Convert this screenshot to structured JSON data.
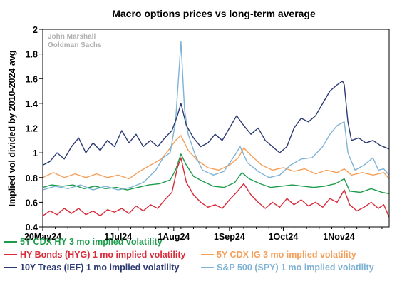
{
  "chart_data": {
    "type": "line",
    "title": "Macro options prices vs long-term average",
    "ylabel": "Implied vol divided by 2010-2024 avg",
    "xlabel": "",
    "watermark": [
      "John Marshall",
      "Goldman Sachs"
    ],
    "ylim": [
      0.4,
      2.0
    ],
    "yticks": [
      0.4,
      0.6,
      0.8,
      1.0,
      1.2,
      1.4,
      1.6,
      1.8,
      2.0
    ],
    "ytick_labels": [
      "0.4",
      "0.6",
      "0.8",
      "1",
      "1.2",
      "1.4",
      "1.6",
      "1.8",
      "2"
    ],
    "xlim": [
      "2024-05-20",
      "2024-11-29"
    ],
    "xticks": [
      "2024-05-20",
      "2024-07-01",
      "2024-08-01",
      "2024-09-01",
      "2024-10-01",
      "2024-11-01"
    ],
    "xtick_labels": [
      "20May24",
      "1Jul24",
      "1Aug24",
      "1Sep24",
      "1Oct24",
      "1Nov24"
    ],
    "grid": false,
    "legend_position": "bottom",
    "series": [
      {
        "name": "5Y CDX HY 3 mo implied volatility",
        "color": "#1e9c4c",
        "legend_row": 0,
        "legend_col": 0,
        "points": [
          [
            "2024-05-20",
            0.72
          ],
          [
            "2024-05-25",
            0.74
          ],
          [
            "2024-05-31",
            0.73
          ],
          [
            "2024-06-06",
            0.74
          ],
          [
            "2024-06-12",
            0.71
          ],
          [
            "2024-06-18",
            0.73
          ],
          [
            "2024-06-24",
            0.71
          ],
          [
            "2024-06-30",
            0.72
          ],
          [
            "2024-07-06",
            0.7
          ],
          [
            "2024-07-12",
            0.72
          ],
          [
            "2024-07-18",
            0.74
          ],
          [
            "2024-07-24",
            0.75
          ],
          [
            "2024-07-30",
            0.78
          ],
          [
            "2024-08-02",
            0.86
          ],
          [
            "2024-08-05",
            0.99
          ],
          [
            "2024-08-08",
            0.9
          ],
          [
            "2024-08-12",
            0.81
          ],
          [
            "2024-08-17",
            0.77
          ],
          [
            "2024-08-23",
            0.73
          ],
          [
            "2024-08-29",
            0.72
          ],
          [
            "2024-09-04",
            0.76
          ],
          [
            "2024-09-08",
            0.84
          ],
          [
            "2024-09-12",
            0.79
          ],
          [
            "2024-09-18",
            0.75
          ],
          [
            "2024-09-24",
            0.72
          ],
          [
            "2024-09-30",
            0.73
          ],
          [
            "2024-10-06",
            0.74
          ],
          [
            "2024-10-12",
            0.73
          ],
          [
            "2024-10-18",
            0.72
          ],
          [
            "2024-10-24",
            0.73
          ],
          [
            "2024-10-30",
            0.75
          ],
          [
            "2024-11-04",
            0.79
          ],
          [
            "2024-11-07",
            0.69
          ],
          [
            "2024-11-13",
            0.68
          ],
          [
            "2024-11-19",
            0.71
          ],
          [
            "2024-11-25",
            0.68
          ],
          [
            "2024-11-29",
            0.67
          ]
        ]
      },
      {
        "name": "HY Bonds (HYG) 1 mo implied volatility",
        "color": "#d92b3a",
        "legend_row": 1,
        "legend_col": 0,
        "points": [
          [
            "2024-05-20",
            0.49
          ],
          [
            "2024-05-24",
            0.53
          ],
          [
            "2024-05-28",
            0.5
          ],
          [
            "2024-06-01",
            0.55
          ],
          [
            "2024-06-05",
            0.51
          ],
          [
            "2024-06-09",
            0.55
          ],
          [
            "2024-06-13",
            0.5
          ],
          [
            "2024-06-17",
            0.53
          ],
          [
            "2024-06-21",
            0.49
          ],
          [
            "2024-06-25",
            0.54
          ],
          [
            "2024-06-29",
            0.52
          ],
          [
            "2024-07-03",
            0.55
          ],
          [
            "2024-07-07",
            0.51
          ],
          [
            "2024-07-11",
            0.57
          ],
          [
            "2024-07-15",
            0.53
          ],
          [
            "2024-07-19",
            0.58
          ],
          [
            "2024-07-23",
            0.55
          ],
          [
            "2024-07-27",
            0.62
          ],
          [
            "2024-07-31",
            0.68
          ],
          [
            "2024-08-03",
            0.88
          ],
          [
            "2024-08-05",
            0.96
          ],
          [
            "2024-08-08",
            0.76
          ],
          [
            "2024-08-12",
            0.66
          ],
          [
            "2024-08-16",
            0.6
          ],
          [
            "2024-08-20",
            0.56
          ],
          [
            "2024-08-24",
            0.58
          ],
          [
            "2024-08-28",
            0.55
          ],
          [
            "2024-09-01",
            0.62
          ],
          [
            "2024-09-05",
            0.68
          ],
          [
            "2024-09-09",
            0.75
          ],
          [
            "2024-09-13",
            0.66
          ],
          [
            "2024-09-17",
            0.6
          ],
          [
            "2024-09-21",
            0.55
          ],
          [
            "2024-09-25",
            0.6
          ],
          [
            "2024-09-29",
            0.56
          ],
          [
            "2024-10-03",
            0.63
          ],
          [
            "2024-10-07",
            0.58
          ],
          [
            "2024-10-11",
            0.62
          ],
          [
            "2024-10-15",
            0.57
          ],
          [
            "2024-10-19",
            0.6
          ],
          [
            "2024-10-23",
            0.56
          ],
          [
            "2024-10-27",
            0.63
          ],
          [
            "2024-10-31",
            0.6
          ],
          [
            "2024-11-04",
            0.7
          ],
          [
            "2024-11-07",
            0.58
          ],
          [
            "2024-11-11",
            0.53
          ],
          [
            "2024-11-15",
            0.56
          ],
          [
            "2024-11-19",
            0.6
          ],
          [
            "2024-11-23",
            0.55
          ],
          [
            "2024-11-26",
            0.58
          ],
          [
            "2024-11-29",
            0.48
          ]
        ]
      },
      {
        "name": "5Y CDX IG 3 mo implied volatility",
        "color": "#f5a05a",
        "legend_row": 1,
        "legend_col": 1,
        "points": [
          [
            "2024-05-20",
            0.8
          ],
          [
            "2024-05-26",
            0.84
          ],
          [
            "2024-06-01",
            0.8
          ],
          [
            "2024-06-07",
            0.83
          ],
          [
            "2024-06-13",
            0.8
          ],
          [
            "2024-06-19",
            0.83
          ],
          [
            "2024-06-25",
            0.8
          ],
          [
            "2024-07-01",
            0.82
          ],
          [
            "2024-07-07",
            0.79
          ],
          [
            "2024-07-13",
            0.85
          ],
          [
            "2024-07-19",
            0.9
          ],
          [
            "2024-07-25",
            0.95
          ],
          [
            "2024-07-29",
            1.02
          ],
          [
            "2024-08-02",
            1.1
          ],
          [
            "2024-08-05",
            1.14
          ],
          [
            "2024-08-09",
            1.02
          ],
          [
            "2024-08-14",
            0.94
          ],
          [
            "2024-08-20",
            0.88
          ],
          [
            "2024-08-26",
            0.86
          ],
          [
            "2024-09-01",
            0.9
          ],
          [
            "2024-09-06",
            0.96
          ],
          [
            "2024-09-09",
            1.04
          ],
          [
            "2024-09-13",
            0.98
          ],
          [
            "2024-09-19",
            0.9
          ],
          [
            "2024-09-25",
            0.86
          ],
          [
            "2024-10-01",
            0.88
          ],
          [
            "2024-10-07",
            0.85
          ],
          [
            "2024-10-13",
            0.87
          ],
          [
            "2024-10-19",
            0.83
          ],
          [
            "2024-10-25",
            0.86
          ],
          [
            "2024-10-31",
            0.84
          ],
          [
            "2024-11-04",
            0.87
          ],
          [
            "2024-11-08",
            0.82
          ],
          [
            "2024-11-14",
            0.84
          ],
          [
            "2024-11-20",
            0.82
          ],
          [
            "2024-11-26",
            0.84
          ],
          [
            "2024-11-29",
            0.79
          ]
        ]
      },
      {
        "name": "S&P 500 (SPY) 1 mo implied volatility",
        "color": "#7fb3d5",
        "legend_row": 2,
        "legend_col": 1,
        "points": [
          [
            "2024-05-20",
            0.7
          ],
          [
            "2024-05-27",
            0.73
          ],
          [
            "2024-06-03",
            0.71
          ],
          [
            "2024-06-10",
            0.74
          ],
          [
            "2024-06-17",
            0.7
          ],
          [
            "2024-06-24",
            0.73
          ],
          [
            "2024-07-01",
            0.7
          ],
          [
            "2024-07-08",
            0.72
          ],
          [
            "2024-07-15",
            0.76
          ],
          [
            "2024-07-22",
            0.86
          ],
          [
            "2024-07-26",
            0.96
          ],
          [
            "2024-07-30",
            1.0
          ],
          [
            "2024-08-02",
            1.25
          ],
          [
            "2024-08-05",
            1.9
          ],
          [
            "2024-08-07",
            1.35
          ],
          [
            "2024-08-09",
            1.15
          ],
          [
            "2024-08-13",
            0.98
          ],
          [
            "2024-08-17",
            0.86
          ],
          [
            "2024-08-23",
            0.82
          ],
          [
            "2024-08-29",
            0.85
          ],
          [
            "2024-09-04",
            0.98
          ],
          [
            "2024-09-07",
            1.05
          ],
          [
            "2024-09-11",
            0.92
          ],
          [
            "2024-09-17",
            0.85
          ],
          [
            "2024-09-23",
            0.8
          ],
          [
            "2024-09-29",
            0.82
          ],
          [
            "2024-10-05",
            0.9
          ],
          [
            "2024-10-11",
            0.95
          ],
          [
            "2024-10-17",
            0.96
          ],
          [
            "2024-10-23",
            1.05
          ],
          [
            "2024-10-27",
            1.15
          ],
          [
            "2024-10-31",
            1.22
          ],
          [
            "2024-11-04",
            1.25
          ],
          [
            "2024-11-06",
            1.0
          ],
          [
            "2024-11-10",
            0.86
          ],
          [
            "2024-11-15",
            0.9
          ],
          [
            "2024-11-20",
            0.96
          ],
          [
            "2024-11-23",
            0.86
          ],
          [
            "2024-11-26",
            0.87
          ],
          [
            "2024-11-29",
            0.82
          ]
        ]
      },
      {
        "name": "10Y Treas (IEF) 1 mo implied volatility",
        "color": "#2c3a73",
        "legend_row": 2,
        "legend_col": 0,
        "points": [
          [
            "2024-05-20",
            0.9
          ],
          [
            "2024-05-24",
            0.93
          ],
          [
            "2024-05-28",
            1.0
          ],
          [
            "2024-06-01",
            0.95
          ],
          [
            "2024-06-05",
            1.05
          ],
          [
            "2024-06-09",
            1.12
          ],
          [
            "2024-06-13",
            1.0
          ],
          [
            "2024-06-17",
            1.08
          ],
          [
            "2024-06-21",
            1.02
          ],
          [
            "2024-06-25",
            1.1
          ],
          [
            "2024-06-29",
            1.05
          ],
          [
            "2024-07-03",
            1.18
          ],
          [
            "2024-07-07",
            1.08
          ],
          [
            "2024-07-11",
            1.15
          ],
          [
            "2024-07-15",
            1.05
          ],
          [
            "2024-07-19",
            1.1
          ],
          [
            "2024-07-23",
            1.05
          ],
          [
            "2024-07-27",
            1.12
          ],
          [
            "2024-07-31",
            1.18
          ],
          [
            "2024-08-03",
            1.3
          ],
          [
            "2024-08-05",
            1.4
          ],
          [
            "2024-08-08",
            1.22
          ],
          [
            "2024-08-12",
            1.12
          ],
          [
            "2024-08-16",
            1.05
          ],
          [
            "2024-08-20",
            1.08
          ],
          [
            "2024-08-24",
            1.15
          ],
          [
            "2024-08-28",
            1.1
          ],
          [
            "2024-09-01",
            1.2
          ],
          [
            "2024-09-05",
            1.3
          ],
          [
            "2024-09-09",
            1.22
          ],
          [
            "2024-09-13",
            1.15
          ],
          [
            "2024-09-17",
            1.2
          ],
          [
            "2024-09-21",
            1.1
          ],
          [
            "2024-09-25",
            1.05
          ],
          [
            "2024-09-29",
            1.0
          ],
          [
            "2024-10-03",
            1.05
          ],
          [
            "2024-10-07",
            1.2
          ],
          [
            "2024-10-11",
            1.28
          ],
          [
            "2024-10-15",
            1.25
          ],
          [
            "2024-10-19",
            1.3
          ],
          [
            "2024-10-23",
            1.4
          ],
          [
            "2024-10-27",
            1.5
          ],
          [
            "2024-10-31",
            1.55
          ],
          [
            "2024-11-03",
            1.58
          ],
          [
            "2024-11-04",
            1.55
          ],
          [
            "2024-11-06",
            1.25
          ],
          [
            "2024-11-08",
            1.1
          ],
          [
            "2024-11-12",
            1.12
          ],
          [
            "2024-11-16",
            1.08
          ],
          [
            "2024-11-20",
            1.1
          ],
          [
            "2024-11-24",
            1.06
          ],
          [
            "2024-11-29",
            1.03
          ]
        ]
      }
    ]
  }
}
